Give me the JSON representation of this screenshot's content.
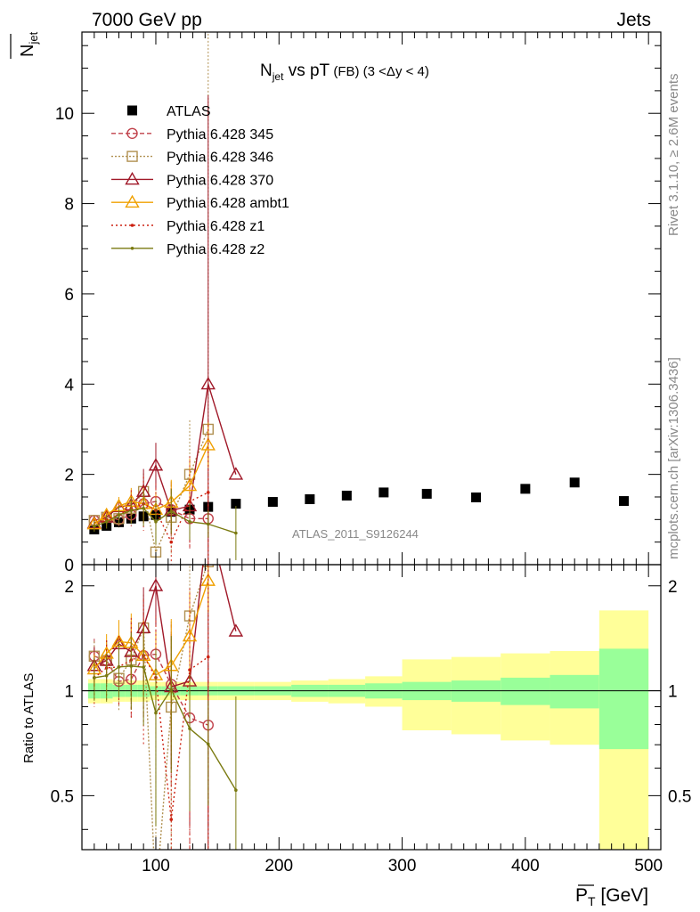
{
  "header": {
    "left": "7000 GeV pp",
    "right": "Jets"
  },
  "side_text": {
    "rivet": "Rivet 3.1.10, ≥ 2.6M events",
    "mcplots": "mcplots.cern.ch [arXiv:1306.3436]"
  },
  "chart_data": {
    "type": "scatter",
    "title_main": "N",
    "title_sub": "jet",
    "title_rest": " vs pT",
    "title_fb": " (FB) ",
    "title_range": "(3 <Δy < 4)",
    "analysis_label": "ATLAS_2011_S9126244",
    "ylabel_main": "N",
    "ylabel_sub": "jet",
    "ylabel_ratio": "Ratio to ATLAS",
    "xlabel_main": "P",
    "xlabel_sub": "T",
    "xlabel_unit": " [GeV]",
    "xlim": [
      40,
      510
    ],
    "ylim": [
      0,
      11.8
    ],
    "ratio_ylim": [
      0.35,
      2.3
    ],
    "x_ticks": [
      100,
      200,
      300,
      400,
      500
    ],
    "y_ticks": [
      0,
      2,
      4,
      6,
      8,
      10
    ],
    "ratio_ticks": [
      0.5,
      1,
      2
    ],
    "bins": [
      [
        45,
        55
      ],
      [
        55,
        65
      ],
      [
        65,
        75
      ],
      [
        75,
        85
      ],
      [
        85,
        95
      ],
      [
        95,
        105
      ],
      [
        105,
        120
      ],
      [
        120,
        135
      ],
      [
        135,
        150
      ],
      [
        150,
        180
      ],
      [
        180,
        210
      ],
      [
        210,
        240
      ],
      [
        240,
        270
      ],
      [
        270,
        300
      ],
      [
        300,
        340
      ],
      [
        340,
        380
      ],
      [
        380,
        420
      ],
      [
        420,
        460
      ],
      [
        460,
        500
      ]
    ],
    "data": {
      "name": "ATLAS",
      "x": [
        50,
        60,
        70,
        80,
        90,
        100,
        112.5,
        127.5,
        142.5,
        165,
        195,
        225,
        255,
        285,
        320,
        360,
        400,
        440,
        480
      ],
      "y": [
        0.78,
        0.86,
        0.94,
        1.02,
        1.07,
        1.1,
        1.17,
        1.22,
        1.28,
        1.35,
        1.39,
        1.45,
        1.53,
        1.6,
        1.57,
        1.49,
        1.68,
        1.82,
        1.41
      ],
      "stat_band": [
        0.05,
        0.05,
        0.04,
        0.04,
        0.04,
        0.03,
        0.03,
        0.03,
        0.03,
        0.03,
        0.03,
        0.04,
        0.04,
        0.05,
        0.06,
        0.07,
        0.09,
        0.11,
        0.32
      ],
      "total_band": [
        0.08,
        0.08,
        0.07,
        0.07,
        0.07,
        0.06,
        0.06,
        0.06,
        0.06,
        0.06,
        0.06,
        0.07,
        0.08,
        0.1,
        0.23,
        0.25,
        0.28,
        0.3,
        0.7
      ]
    },
    "series": [
      {
        "name": "Pythia 6.428 345",
        "color": "#c0404a",
        "marker": "circle",
        "dash": "5,3",
        "x": [
          50,
          60,
          70,
          80,
          90,
          100,
          112.5,
          127.5,
          142.5
        ],
        "y": [
          0.98,
          1.05,
          1.0,
          1.1,
          1.35,
          1.4,
          1.22,
          1.02,
          1.02
        ],
        "err": [
          0.12,
          0.12,
          0.15,
          0.25,
          0.45,
          0.5,
          0.6,
          0.7,
          0.5
        ]
      },
      {
        "name": "Pythia 6.428 346",
        "color": "#b09050",
        "marker": "square",
        "dash": "2,2",
        "x": [
          50,
          60,
          70,
          80,
          90,
          100,
          112.5,
          127.5,
          142.5
        ],
        "y": [
          0.98,
          1.05,
          1.02,
          1.25,
          1.62,
          0.28,
          1.05,
          2.0,
          3.0
        ],
        "err": [
          0.1,
          0.15,
          0.2,
          0.3,
          0.4,
          0.5,
          0.8,
          1.2,
          9.0
        ]
      },
      {
        "name": "Pythia 6.428 370",
        "color": "#a01828",
        "marker": "triangle",
        "dash": "",
        "x": [
          50,
          60,
          70,
          80,
          90,
          100,
          112.5,
          127.5,
          142.5,
          165
        ],
        "y": [
          0.92,
          1.05,
          1.28,
          1.32,
          1.62,
          2.2,
          1.2,
          1.3,
          4.0,
          2.0
        ],
        "err": [
          0.12,
          0.15,
          0.2,
          0.3,
          0.5,
          0.5,
          0.5,
          0.8,
          6.4,
          0.0
        ]
      },
      {
        "name": "Pythia 6.428 ambt1",
        "color": "#f0a000",
        "marker": "triangleopen",
        "dash": "",
        "x": [
          50,
          60,
          70,
          80,
          90,
          100,
          112.5,
          127.5,
          142.5
        ],
        "y": [
          0.9,
          1.1,
          1.3,
          1.4,
          1.35,
          1.22,
          1.38,
          1.75,
          2.65
        ],
        "err": [
          0.1,
          0.15,
          0.2,
          0.3,
          0.35,
          0.4,
          0.5,
          0.6,
          0.5
        ]
      },
      {
        "name": "Pythia 6.428 z1",
        "color": "#cc2010",
        "marker": "dot",
        "dash": "2,3",
        "x": [
          50,
          60,
          70,
          80,
          90,
          100,
          112.5,
          127.5,
          142.5
        ],
        "y": [
          0.85,
          1.0,
          1.1,
          1.25,
          1.35,
          1.2,
          0.5,
          1.4,
          1.6
        ],
        "err": [
          0.15,
          0.2,
          0.25,
          0.4,
          0.6,
          0.6,
          0.7,
          1.0,
          1.6
        ]
      },
      {
        "name": "Pythia 6.428 z2",
        "color": "#7a7a10",
        "marker": "dot",
        "dash": "",
        "x": [
          50,
          60,
          70,
          80,
          90,
          100,
          112.5,
          127.5,
          142.5,
          165
        ],
        "y": [
          0.85,
          0.95,
          1.1,
          1.2,
          1.25,
          0.95,
          1.18,
          0.95,
          0.9,
          0.7
        ],
        "err": [
          0.12,
          0.15,
          0.2,
          0.3,
          0.4,
          0.5,
          0.5,
          0.4,
          0.3,
          0.6
        ]
      }
    ]
  }
}
